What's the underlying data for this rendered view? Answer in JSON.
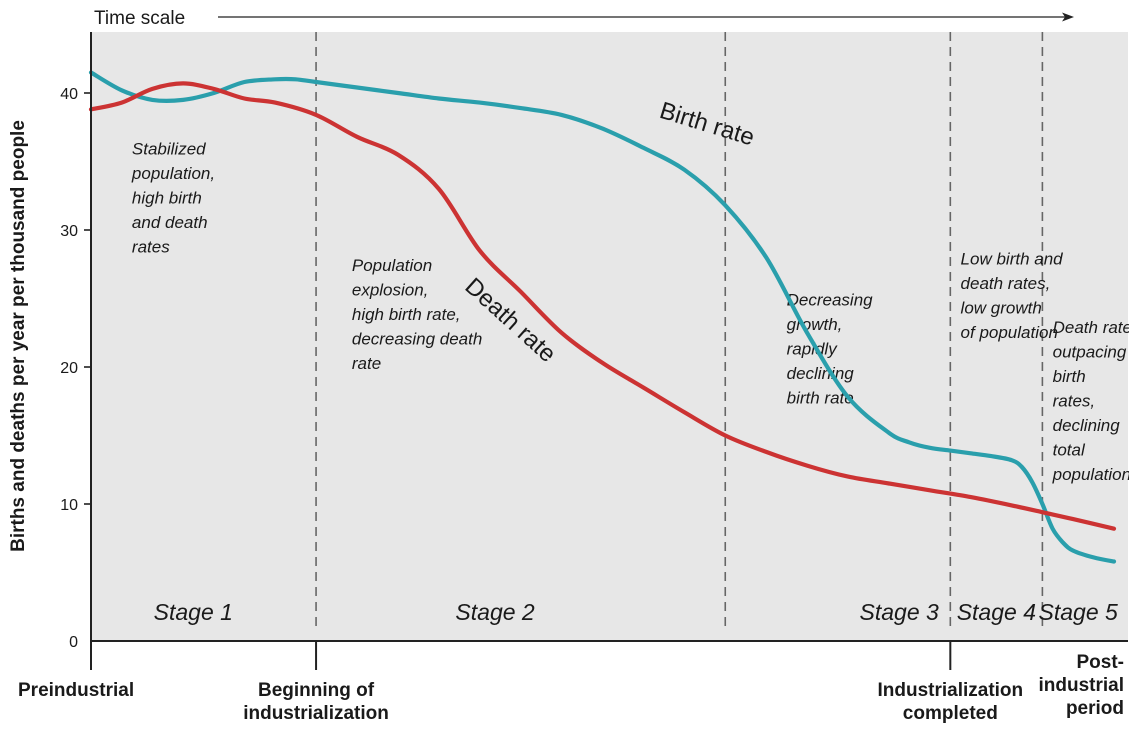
{
  "chart_data": {
    "type": "line",
    "title": "",
    "ylabel": "Births and deaths per year per thousand people",
    "ylim": [
      0,
      45
    ],
    "yticks": [
      0,
      10,
      20,
      30,
      40
    ],
    "xlim": [
      0,
      100
    ],
    "grid": false,
    "time_scale_label": "Time scale",
    "stage_boundaries": [
      22,
      62,
      84,
      93
    ],
    "stages": [
      {
        "label": "Stage 1",
        "x": 10
      },
      {
        "label": "Stage 2",
        "x": 39.5
      },
      {
        "label": "Stage 3",
        "x": 79
      },
      {
        "label": "Stage 4",
        "x": 88.5
      },
      {
        "label": "Stage 5",
        "x": 96.5
      }
    ],
    "x_category_labels": [
      {
        "lines": [
          "Preindustrial"
        ],
        "x": 0
      },
      {
        "lines": [
          "Beginning of",
          "industrialization"
        ],
        "x": 22
      },
      {
        "lines": [
          "Industrialization",
          "completed"
        ],
        "x": 84
      },
      {
        "lines": [
          "Post-",
          "industrial",
          "period"
        ],
        "x": 100
      }
    ],
    "annotations": [
      {
        "lines": [
          "Stabilized",
          "population,",
          "high birth",
          "and death",
          "rates"
        ],
        "x": 4,
        "y": 35.5
      },
      {
        "lines": [
          "Population",
          "explosion,",
          "high birth rate,",
          "decreasing death",
          "rate"
        ],
        "x": 25.5,
        "y": 27
      },
      {
        "lines": [
          "Decreasing",
          "growth,",
          "rapidly",
          "declining",
          "birth rate"
        ],
        "x": 68,
        "y": 24.5
      },
      {
        "lines": [
          "Low birth and",
          "death rates,",
          "low growth",
          "of population"
        ],
        "x": 85,
        "y": 27.5
      },
      {
        "lines": [
          "Death rates",
          "outpacing",
          "birth",
          "rates,",
          "declining",
          "total",
          "population"
        ],
        "x": 94,
        "y": 22.5
      }
    ],
    "series": [
      {
        "name": "Birth rate",
        "color": "#2a9fac",
        "label_x": 60,
        "label_y": 37.2,
        "label_angle": 17,
        "x": [
          0,
          3,
          6,
          9,
          12,
          15,
          18,
          20,
          22,
          26,
          30,
          34,
          38,
          42,
          46,
          50,
          54,
          58,
          62,
          66,
          70,
          74,
          78,
          80,
          82,
          84,
          86,
          88,
          90,
          91,
          92,
          93,
          94,
          95,
          96,
          98,
          100
        ],
        "values": [
          41.5,
          40.2,
          39.5,
          39.5,
          40.0,
          40.8,
          41.0,
          41.0,
          40.8,
          40.4,
          40.0,
          39.6,
          39.3,
          38.9,
          38.4,
          37.4,
          36.0,
          34.4,
          31.8,
          28.0,
          22.5,
          17.8,
          15.2,
          14.5,
          14.1,
          13.9,
          13.7,
          13.5,
          13.2,
          12.7,
          11.6,
          10.0,
          8.2,
          7.2,
          6.6,
          6.1,
          5.8
        ]
      },
      {
        "name": "Death rate",
        "color": "#cc3333",
        "label_x": 40.5,
        "label_y": 23.0,
        "label_angle": 42,
        "x": [
          0,
          3,
          6,
          9,
          12,
          15,
          18,
          22,
          26,
          30,
          34,
          38,
          42,
          46,
          50,
          54,
          58,
          62,
          66,
          70,
          74,
          78,
          82,
          86,
          90,
          93,
          96,
          100
        ],
        "values": [
          38.8,
          39.3,
          40.3,
          40.7,
          40.3,
          39.6,
          39.3,
          38.4,
          36.8,
          35.5,
          33.0,
          28.5,
          25.5,
          22.5,
          20.3,
          18.5,
          16.7,
          15.0,
          13.8,
          12.8,
          12.0,
          11.5,
          11.0,
          10.5,
          9.9,
          9.4,
          8.9,
          8.2
        ]
      }
    ]
  }
}
